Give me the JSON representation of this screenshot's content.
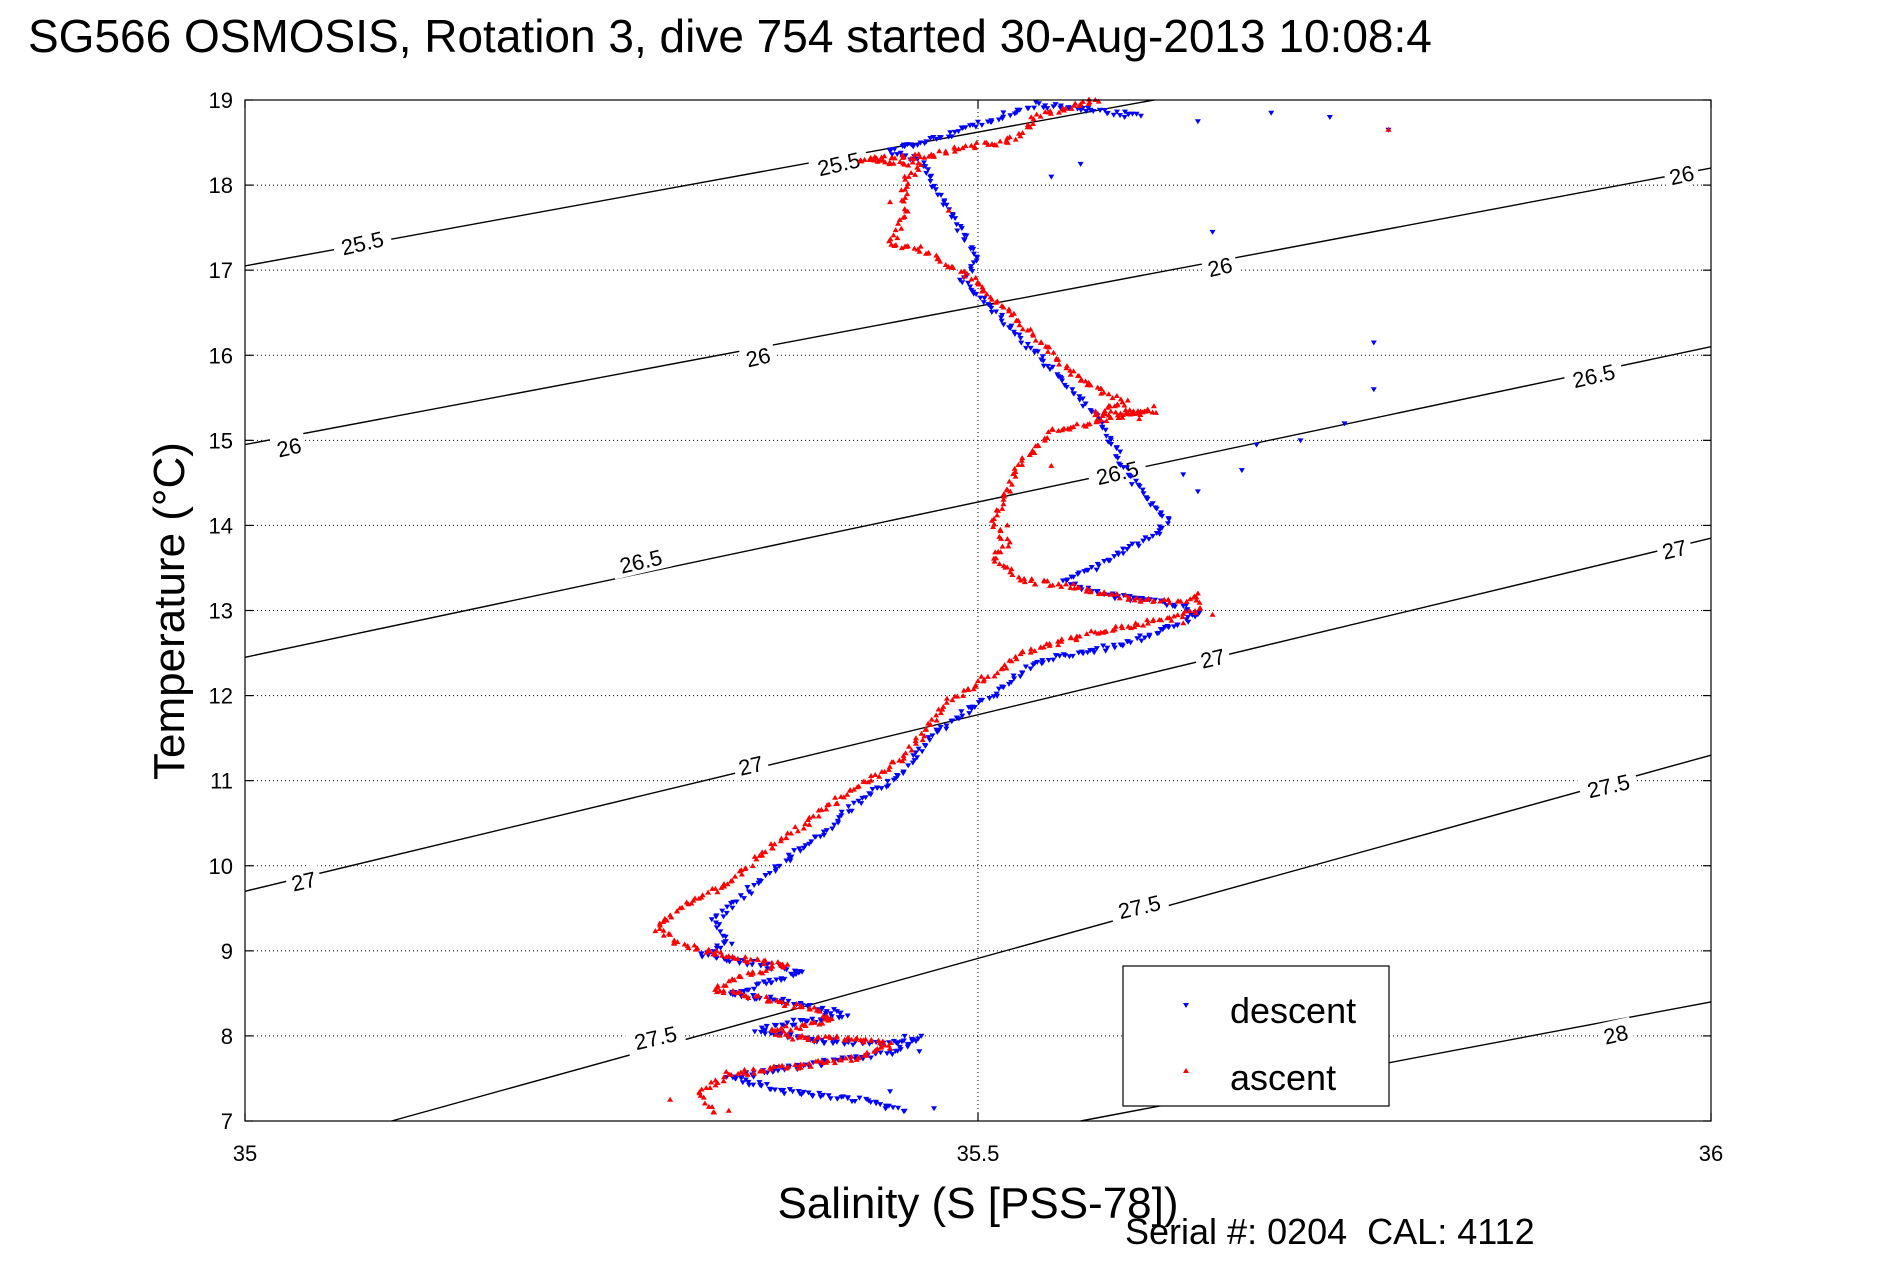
{
  "chart_data": {
    "type": "scatter",
    "title": "SG566 OSMOSIS, Rotation 3, dive 754 started 30-Aug-2013 10:08:4",
    "xlabel": "Salinity (S [PSS-78])",
    "ylabel": "Temperature (°C)",
    "footer": "Serial #: 0204  CAL: 4112",
    "xlim": [
      35,
      36
    ],
    "ylim": [
      7,
      19
    ],
    "x_ticks": [
      35,
      35.5,
      36
    ],
    "x_tick_labels": [
      "35",
      "35.5",
      "36"
    ],
    "y_ticks": [
      7,
      8,
      9,
      10,
      11,
      12,
      13,
      14,
      15,
      16,
      17,
      18,
      19
    ],
    "y_tick_labels": [
      "7",
      "8",
      "9",
      "10",
      "11",
      "12",
      "13",
      "14",
      "15",
      "16",
      "17",
      "18",
      "19"
    ],
    "grid": true,
    "legend_position": "bottom-right",
    "colors": {
      "descent": "#0000ff",
      "ascent": "#ff0000",
      "contour": "#000000"
    },
    "contours": [
      {
        "sigma": 25.5,
        "label": "25.5",
        "points": [
          [
            35,
            17.05
          ],
          [
            35.62,
            19
          ]
        ]
      },
      {
        "sigma": 26,
        "label": "26",
        "points": [
          [
            35,
            14.95
          ],
          [
            36,
            18.2
          ]
        ]
      },
      {
        "sigma": 26.5,
        "label": "26.5",
        "points": [
          [
            35,
            12.45
          ],
          [
            36,
            16.1
          ]
        ]
      },
      {
        "sigma": 27,
        "label": "27",
        "points": [
          [
            35,
            9.7
          ],
          [
            36,
            13.85
          ]
        ]
      },
      {
        "sigma": 27.5,
        "label": "27.5",
        "points": [
          [
            35.1,
            7
          ],
          [
            36,
            11.3
          ]
        ]
      },
      {
        "sigma": 28,
        "label": "28",
        "points": [
          [
            35.57,
            7
          ],
          [
            36,
            8.4
          ]
        ]
      }
    ],
    "contour_labels": [
      {
        "text": "25.5",
        "at": [
          35.08,
          17.32
        ]
      },
      {
        "text": "25.5",
        "at": [
          35.405,
          18.25
        ]
      },
      {
        "text": "26",
        "at": [
          35.03,
          14.92
        ]
      },
      {
        "text": "26",
        "at": [
          35.35,
          15.98
        ]
      },
      {
        "text": "26",
        "at": [
          35.665,
          17.04
        ]
      },
      {
        "text": "26",
        "at": [
          35.98,
          18.12
        ]
      },
      {
        "text": "26.5",
        "at": [
          35.27,
          13.58
        ]
      },
      {
        "text": "26.5",
        "at": [
          35.595,
          14.62
        ]
      },
      {
        "text": "26.5",
        "at": [
          35.92,
          15.76
        ]
      },
      {
        "text": "27",
        "at": [
          35.04,
          9.82
        ]
      },
      {
        "text": "27",
        "at": [
          35.345,
          11.18
        ]
      },
      {
        "text": "27",
        "at": [
          35.66,
          12.44
        ]
      },
      {
        "text": "27",
        "at": [
          35.975,
          13.72
        ]
      },
      {
        "text": "27.5",
        "at": [
          35.28,
          7.98
        ]
      },
      {
        "text": "27.5",
        "at": [
          35.61,
          9.52
        ]
      },
      {
        "text": "27.5",
        "at": [
          35.93,
          10.94
        ]
      },
      {
        "text": "28",
        "at": [
          35.935,
          8.02
        ]
      }
    ],
    "series": [
      {
        "name": "descent",
        "marker": "triangle-down",
        "path": [
          [
            35.61,
            18.82
          ],
          [
            35.54,
            18.95
          ],
          [
            35.48,
            18.6
          ],
          [
            35.44,
            18.4
          ],
          [
            35.46,
            18.3
          ],
          [
            35.5,
            17.1
          ],
          [
            35.49,
            16.9
          ],
          [
            35.58,
            15.3
          ],
          [
            35.61,
            14.4
          ],
          [
            35.63,
            14.05
          ],
          [
            35.62,
            13.9
          ],
          [
            35.58,
            13.5
          ],
          [
            35.56,
            13.35
          ],
          [
            35.59,
            13.18
          ],
          [
            35.64,
            13.05
          ],
          [
            35.65,
            12.95
          ],
          [
            35.63,
            12.8
          ],
          [
            35.6,
            12.6
          ],
          [
            35.55,
            12.45
          ],
          [
            35.53,
            12.3
          ],
          [
            35.51,
            12.0
          ],
          [
            35.49,
            11.8
          ],
          [
            35.47,
            11.55
          ],
          [
            35.46,
            11.35
          ],
          [
            35.45,
            11.1
          ],
          [
            35.43,
            10.9
          ],
          [
            35.41,
            10.65
          ],
          [
            35.4,
            10.45
          ],
          [
            35.38,
            10.2
          ],
          [
            35.36,
            9.95
          ],
          [
            35.34,
            9.65
          ],
          [
            35.32,
            9.35
          ],
          [
            35.33,
            9.1
          ],
          [
            35.31,
            8.95
          ],
          [
            35.35,
            8.85
          ],
          [
            35.38,
            8.75
          ],
          [
            35.35,
            8.6
          ],
          [
            35.33,
            8.5
          ],
          [
            35.37,
            8.4
          ],
          [
            35.41,
            8.25
          ],
          [
            35.37,
            8.15
          ],
          [
            35.35,
            8.05
          ],
          [
            35.39,
            7.95
          ],
          [
            35.43,
            7.9
          ],
          [
            35.46,
            7.98
          ],
          [
            35.44,
            7.8
          ],
          [
            35.4,
            7.7
          ],
          [
            35.36,
            7.6
          ],
          [
            35.33,
            7.5
          ],
          [
            35.37,
            7.35
          ],
          [
            35.42,
            7.25
          ],
          [
            35.45,
            7.12
          ]
        ],
        "scattered": [
          [
            35.57,
            18.9
          ],
          [
            35.6,
            18.8
          ],
          [
            35.65,
            18.75
          ],
          [
            35.7,
            18.85
          ],
          [
            35.74,
            18.8
          ],
          [
            35.78,
            18.65
          ],
          [
            35.55,
            18.1
          ],
          [
            35.57,
            18.25
          ],
          [
            35.66,
            17.45
          ],
          [
            35.77,
            16.15
          ],
          [
            35.77,
            15.6
          ],
          [
            35.75,
            15.2
          ],
          [
            35.69,
            14.95
          ],
          [
            35.68,
            14.65
          ],
          [
            35.72,
            15.0
          ],
          [
            35.64,
            14.6
          ],
          [
            35.65,
            14.4
          ],
          [
            35.45,
            8.0
          ],
          [
            35.46,
            7.82
          ],
          [
            35.44,
            7.35
          ],
          [
            35.47,
            7.15
          ]
        ]
      },
      {
        "name": "ascent",
        "marker": "triangle-up",
        "path": [
          [
            35.58,
            19.0
          ],
          [
            35.56,
            18.9
          ],
          [
            35.54,
            18.8
          ],
          [
            35.53,
            18.6
          ],
          [
            35.52,
            18.5
          ],
          [
            35.49,
            18.45
          ],
          [
            35.47,
            18.35
          ],
          [
            35.42,
            18.3
          ],
          [
            35.46,
            18.25
          ],
          [
            35.45,
            18.0
          ],
          [
            35.45,
            17.6
          ],
          [
            35.44,
            17.3
          ],
          [
            35.46,
            17.25
          ],
          [
            35.5,
            16.85
          ],
          [
            35.57,
            15.7
          ],
          [
            35.6,
            15.45
          ],
          [
            35.58,
            15.3
          ],
          [
            35.62,
            15.35
          ],
          [
            35.55,
            15.1
          ],
          [
            35.53,
            14.75
          ],
          [
            35.51,
            14.05
          ],
          [
            35.52,
            13.8
          ],
          [
            35.51,
            13.6
          ],
          [
            35.53,
            13.35
          ],
          [
            35.56,
            13.3
          ],
          [
            35.6,
            13.15
          ],
          [
            35.63,
            13.1
          ],
          [
            35.65,
            13.15
          ],
          [
            35.65,
            13.0
          ],
          [
            35.63,
            12.9
          ],
          [
            35.58,
            12.75
          ],
          [
            35.53,
            12.5
          ],
          [
            35.51,
            12.25
          ],
          [
            35.48,
            11.95
          ],
          [
            35.47,
            11.7
          ],
          [
            35.46,
            11.5
          ],
          [
            35.45,
            11.3
          ],
          [
            35.43,
            11.05
          ],
          [
            35.41,
            10.85
          ],
          [
            35.39,
            10.6
          ],
          [
            35.37,
            10.35
          ],
          [
            35.35,
            10.1
          ],
          [
            35.33,
            9.8
          ],
          [
            35.3,
            9.55
          ],
          [
            35.28,
            9.25
          ],
          [
            35.3,
            9.05
          ],
          [
            35.34,
            8.9
          ],
          [
            35.37,
            8.85
          ],
          [
            35.34,
            8.7
          ],
          [
            35.32,
            8.55
          ],
          [
            35.35,
            8.45
          ],
          [
            35.39,
            8.3
          ],
          [
            35.4,
            8.18
          ],
          [
            35.36,
            8.05
          ],
          [
            35.38,
            7.95
          ],
          [
            35.41,
            7.98
          ],
          [
            35.44,
            7.9
          ],
          [
            35.42,
            7.75
          ],
          [
            35.38,
            7.65
          ],
          [
            35.33,
            7.55
          ],
          [
            35.31,
            7.35
          ],
          [
            35.32,
            7.1
          ]
        ],
        "scattered": [
          [
            35.58,
            19.0
          ],
          [
            35.57,
            18.95
          ],
          [
            35.52,
            18.55
          ],
          [
            35.45,
            18.1
          ],
          [
            35.44,
            17.8
          ],
          [
            35.48,
            17.7
          ],
          [
            35.5,
            16.85
          ],
          [
            35.57,
            15.7
          ],
          [
            35.59,
            15.4
          ],
          [
            35.61,
            15.25
          ],
          [
            35.62,
            15.4
          ],
          [
            35.55,
            14.7
          ],
          [
            35.52,
            14.0
          ],
          [
            35.65,
            13.2
          ],
          [
            35.66,
            12.95
          ],
          [
            35.64,
            12.85
          ],
          [
            35.38,
            8.0
          ],
          [
            35.42,
            7.95
          ],
          [
            35.44,
            7.85
          ],
          [
            35.29,
            7.25
          ],
          [
            35.33,
            7.12
          ],
          [
            35.78,
            18.65
          ]
        ]
      }
    ]
  }
}
